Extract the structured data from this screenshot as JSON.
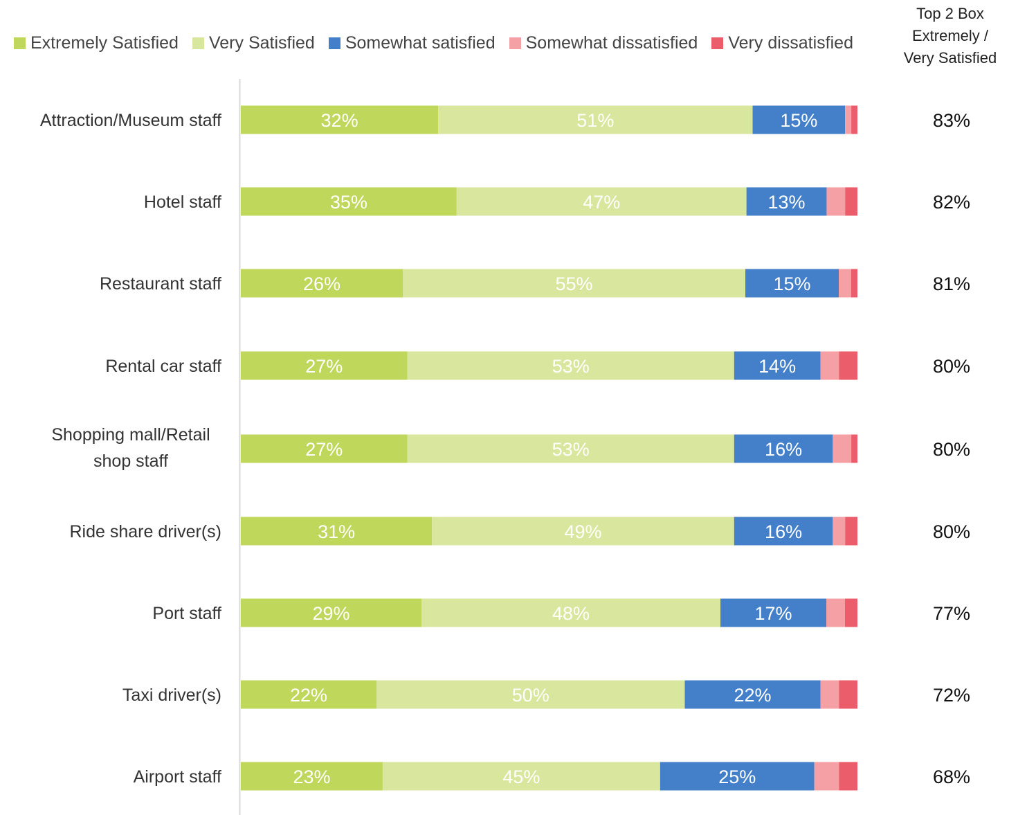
{
  "chart_data": {
    "type": "bar",
    "orientation": "horizontal",
    "stacked": true,
    "categories": [
      "Attraction/Museum staff",
      "Hotel staff",
      "Restaurant staff",
      "Rental car staff",
      "Shopping mall/Retail shop staff",
      "Ride share driver(s)",
      "Port staff",
      "Taxi driver(s)",
      "Airport staff"
    ],
    "series": [
      {
        "name": "Extremely Satisfied",
        "color": "#BFD75A",
        "label_color": "#ffffff",
        "values": [
          32,
          35,
          26,
          27,
          27,
          31,
          29,
          22,
          23
        ],
        "labels": [
          "32%",
          "35%",
          "26%",
          "27%",
          "27%",
          "31%",
          "29%",
          "22%",
          "23%"
        ]
      },
      {
        "name": "Very Satisfied",
        "color": "#D9E69D",
        "label_color": "#ffffff",
        "values": [
          51,
          47,
          55,
          53,
          53,
          49,
          48,
          50,
          45
        ],
        "labels": [
          "51%",
          "47%",
          "55%",
          "53%",
          "53%",
          "49%",
          "48%",
          "50%",
          "45%"
        ]
      },
      {
        "name": "Somewhat satisfied",
        "color": "#4480C9",
        "label_color": "#ffffff",
        "values": [
          15,
          13,
          15,
          14,
          16,
          16,
          17,
          22,
          25
        ],
        "labels": [
          "15%",
          "13%",
          "15%",
          "14%",
          "16%",
          "16%",
          "17%",
          "22%",
          "25%"
        ]
      },
      {
        "name": "Somewhat dissatisfied",
        "color": "#F4A0A4",
        "label_color": "#ffffff",
        "values": [
          1,
          3,
          2,
          3,
          3,
          2,
          3,
          3,
          4
        ]
      },
      {
        "name": "Very dissatisfied",
        "color": "#EC5D6B",
        "label_color": "#ffffff",
        "values": [
          1,
          2,
          1,
          3,
          1,
          2,
          2,
          3,
          3
        ]
      }
    ],
    "top2_box": {
      "header": [
        "Top 2 Box",
        "Extremely /",
        "Very Satisfied"
      ],
      "values": [
        "83%",
        "82%",
        "81%",
        "80%",
        "80%",
        "80%",
        "77%",
        "72%",
        "68%"
      ]
    },
    "xlim": [
      0,
      100
    ],
    "grid": false,
    "legend_position": "top"
  },
  "colors": {
    "axis_line": "#D9D9D9",
    "category_text": "#333333",
    "top2_text": "#111111"
  }
}
